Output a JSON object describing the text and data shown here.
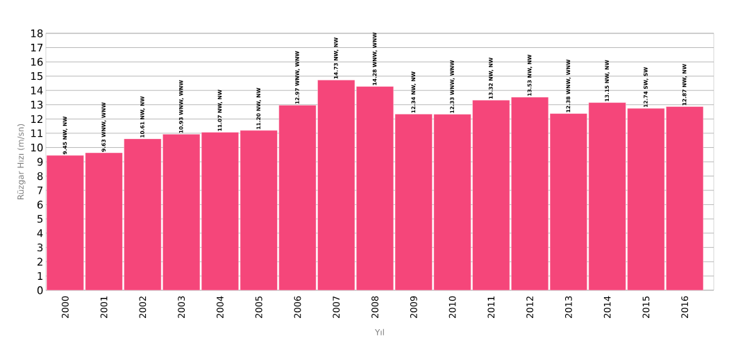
{
  "chart_data": {
    "type": "bar",
    "xlabel": "Yıl",
    "ylabel": "Rüzgar Hızı (m/sn)",
    "categories": [
      "2000",
      "2001",
      "2002",
      "2003",
      "2004",
      "2005",
      "2006",
      "2007",
      "2008",
      "2009",
      "2010",
      "2011",
      "2012",
      "2013",
      "2014",
      "2015",
      "2016"
    ],
    "values": [
      9.45,
      9.63,
      10.61,
      10.93,
      11.07,
      11.2,
      12.97,
      14.73,
      14.28,
      12.34,
      12.33,
      13.32,
      13.53,
      12.38,
      13.15,
      12.74,
      12.87
    ],
    "value_labels": [
      "9.45 NW, NW",
      "9.63 WNW, WNW",
      "10.61 NW, NW",
      "10.93 WNW, WNW",
      "11.07 NW, NW",
      "11.20 NW, NW",
      "12.97 WNW, WNW",
      "14.73 NW, NW",
      "14.28 WNW, WNW",
      "12.34 NW, NW",
      "12.33 WNW, WNW",
      "13.32 NW, NW",
      "13.53 NW, NW",
      "12.38 WNW, WNW",
      "13.15 NW, NW",
      "12.74 SW, SW",
      "12.87 NW, NW"
    ],
    "color": "#f5467a",
    "ylim": [
      0,
      18
    ],
    "yticks": [
      0,
      1,
      2,
      3,
      4,
      5,
      6,
      7,
      8,
      9,
      10,
      11,
      12,
      13,
      14,
      15,
      16,
      17,
      18
    ],
    "grid": "y"
  }
}
